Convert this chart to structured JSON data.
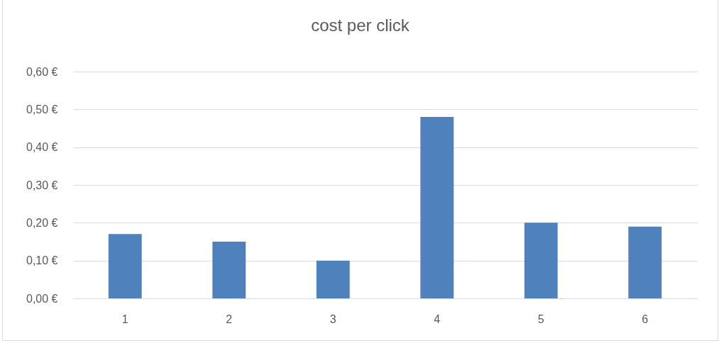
{
  "chart_data": {
    "type": "bar",
    "title": "cost per click",
    "categories": [
      "1",
      "2",
      "3",
      "4",
      "5",
      "6"
    ],
    "values": [
      0.17,
      0.15,
      0.1,
      0.48,
      0.2,
      0.19
    ],
    "color": "#4f81bd",
    "ylim": [
      0,
      0.6
    ],
    "yticks": [
      {
        "value": 0,
        "label": "0,00 €"
      },
      {
        "value": 0.1,
        "label": "0,10 €"
      },
      {
        "value": 0.2,
        "label": "0,20 €"
      },
      {
        "value": 0.3,
        "label": "0,30 €"
      },
      {
        "value": 0.4,
        "label": "0,40 €"
      },
      {
        "value": 0.5,
        "label": "0,50 €"
      },
      {
        "value": 0.6,
        "label": "0,60 €"
      }
    ],
    "grid": "y"
  }
}
